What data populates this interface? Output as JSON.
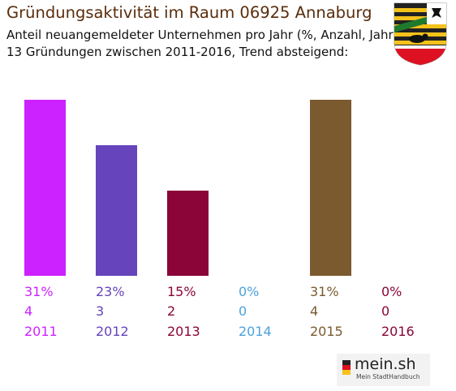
{
  "title": "Gründungsaktivität im Raum 06925 Annaburg",
  "subtitle_line1": "Anteil neuangemeldeter Unternehmen pro Jahr (%, Anzahl, Jahr)",
  "subtitle_line2": "13 Gründungen zwischen 2011-2016, Trend absteigend:",
  "logo": {
    "text": "mein.sh",
    "tagline": "Mein StadtHandbuch"
  },
  "chart_data": {
    "type": "bar",
    "categories": [
      "2011",
      "2012",
      "2013",
      "2014",
      "2015",
      "2016"
    ],
    "percent_labels": [
      "31%",
      "23%",
      "15%",
      "0%",
      "31%",
      "0%"
    ],
    "count_labels": [
      "4",
      "3",
      "2",
      "0",
      "4",
      "0"
    ],
    "values": [
      31,
      23,
      15,
      0,
      31,
      0
    ],
    "colors": [
      "#cc22ff",
      "#6644bb",
      "#8b0538",
      "#4aa3dd",
      "#7a5a2e",
      "#8b0538"
    ],
    "ylim": [
      0,
      31
    ]
  }
}
